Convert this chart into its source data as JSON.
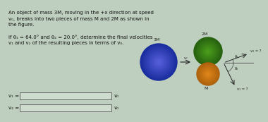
{
  "bg_color": "#bfcfbf",
  "text_color": "#111111",
  "title_lines": [
    "An object of mass 3M, moving in the +x direction at speed",
    "v₀, breaks into two pieces of mass M and 2M as shown in",
    "the figure."
  ],
  "condition_lines": [
    "If θ₁ = 64.0° and θ₂ = 20.0°, determine the final velocities",
    "v₁ and v₂ of the resulting pieces in terms of v₀."
  ],
  "input_label_1": "v₁ =",
  "input_label_2": "v₂ =",
  "unit_label_1": "v₀",
  "unit_label_2": "v₀",
  "blue_color": "#1a2f9e",
  "green_color": "#3d6e18",
  "orange_color": "#c97820",
  "arrow_color": "#222222",
  "label_3M": "3M",
  "label_2M": "2M",
  "label_M": "M",
  "label_v0": "v₀",
  "label_v2": "v₂ = ?",
  "label_v1": "v₁ = ?",
  "label_theta2": "θ₂",
  "label_theta1": "θ₁",
  "theta1_deg": 64.0,
  "theta2_deg": 20.0
}
